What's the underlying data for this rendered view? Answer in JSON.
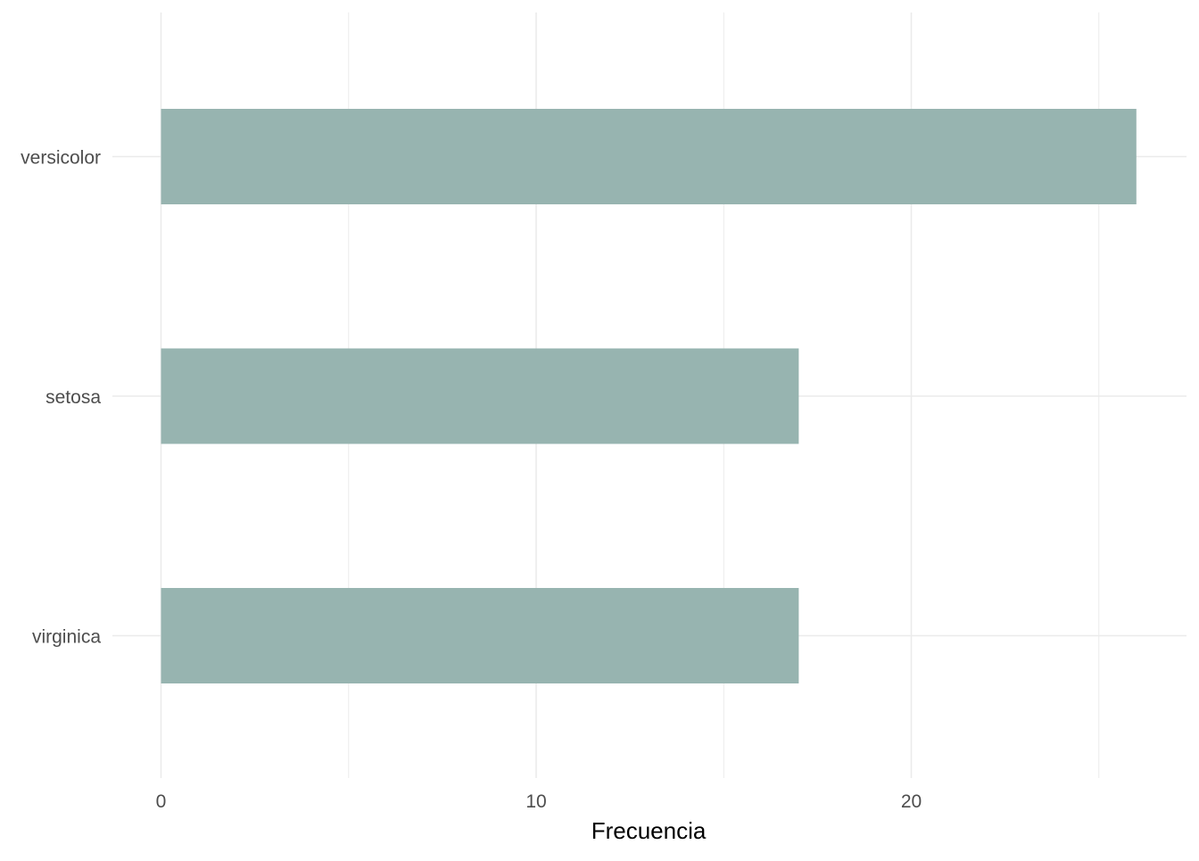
{
  "chart_data": {
    "type": "bar",
    "orientation": "horizontal",
    "title": "",
    "xlabel": "Frecuencia",
    "ylabel": "",
    "categories": [
      "versicolor",
      "setosa",
      "virginica"
    ],
    "values": [
      26,
      17,
      17
    ],
    "xlim": [
      0,
      27.3
    ],
    "x_ticks": [
      0,
      10,
      20
    ],
    "x_minor_ticks": [
      5,
      15,
      25
    ],
    "grid": true,
    "legend": "none",
    "bar_color": "#97B4B0",
    "grid_color": "#EBEBEB"
  }
}
